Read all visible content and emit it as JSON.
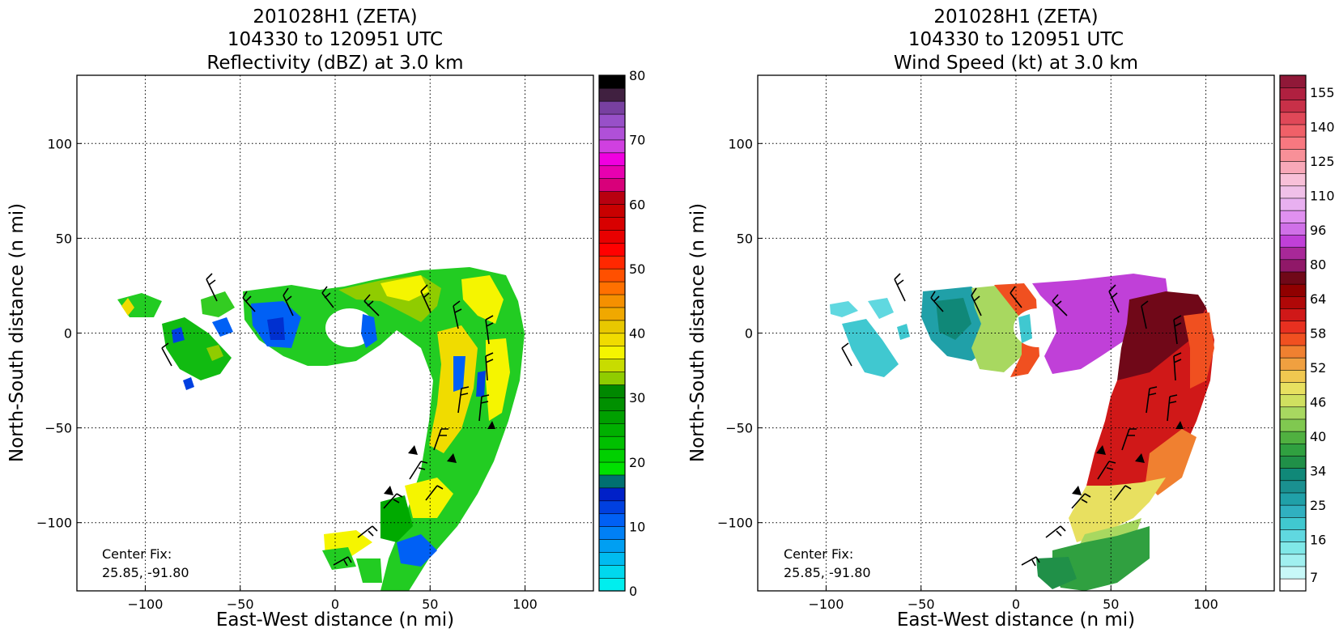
{
  "figure": {
    "panels": [
      {
        "id": "reflectivity",
        "title_lines": [
          "201028H1 (ZETA)",
          "104330 to 120951 UTC",
          "Reflectivity (dBZ) at 3.0 km"
        ],
        "center_fix_label": "Center Fix:",
        "center_fix_value": "25.85, -91.80"
      },
      {
        "id": "wind",
        "title_lines": [
          "201028H1 (ZETA)",
          "104330 to 120951 UTC",
          "Wind Speed (kt) at 3.0 km"
        ],
        "center_fix_label": "Center Fix:",
        "center_fix_value": "25.85, -91.80"
      }
    ]
  },
  "chart_data": [
    {
      "type": "heatmap",
      "title": "201028H1 (ZETA) 104330 to 120951 UTC Reflectivity (dBZ) at 3.0 km",
      "xlabel": "East-West distance (n mi)",
      "ylabel": "North-South distance (n mi)",
      "xlim": [
        -136,
        136
      ],
      "ylim": [
        -136,
        136
      ],
      "xticks": [
        -100,
        -50,
        0,
        50,
        100
      ],
      "yticks": [
        -100,
        -50,
        0,
        50,
        100
      ],
      "xtick_labels": [
        "−100",
        "−50",
        "0",
        "50",
        "100"
      ],
      "ytick_labels": [
        "−100",
        "−50",
        "0",
        "50",
        "100"
      ],
      "grid": true,
      "colorbar": {
        "min": 0,
        "max": 80,
        "tick_values": [
          0,
          10,
          20,
          30,
          40,
          50,
          60,
          70,
          80
        ],
        "tick_labels": [
          "0",
          "10",
          "20",
          "30",
          "40",
          "50",
          "60",
          "70",
          "80"
        ],
        "colors": [
          "#00eeee",
          "#00d8ee",
          "#00bbf0",
          "#009ff2",
          "#0080f5",
          "#0060f5",
          "#0040e0",
          "#0020c8",
          "#007070",
          "#00e000",
          "#00d000",
          "#00c000",
          "#00b000",
          "#00a000",
          "#009000",
          "#008800",
          "#90cc00",
          "#c8dc00",
          "#f5f500",
          "#f0dc00",
          "#e8c800",
          "#f0a800",
          "#f59000",
          "#ff7000",
          "#ff5000",
          "#ff2800",
          "#ff0000",
          "#e80000",
          "#d80000",
          "#c80000",
          "#b80010",
          "#d8007a",
          "#e800b0",
          "#f000e0",
          "#d040e0",
          "#b050d8",
          "#9850c8",
          "#7840a0",
          "#402040",
          "#000000"
        ]
      }
    },
    {
      "type": "heatmap",
      "title": "201028H1 (ZETA) 104330 to 120951 UTC Wind Speed (kt) at 3.0 km",
      "xlabel": "East-West distance (n mi)",
      "ylabel": "North-South distance (n mi)",
      "xlim": [
        -136,
        136
      ],
      "ylim": [
        -136,
        136
      ],
      "xticks": [
        -100,
        -50,
        0,
        50,
        100
      ],
      "yticks": [
        -100,
        -50,
        0,
        50,
        100
      ],
      "xtick_labels": [
        "−100",
        "−50",
        "0",
        "50",
        "100"
      ],
      "ytick_labels": [
        "−100",
        "−50",
        "0",
        "50",
        "100"
      ],
      "grid": true,
      "colorbar": {
        "tick_labels": [
          "7",
          "16",
          "25",
          "34",
          "40",
          "46",
          "52",
          "58",
          "64",
          "80",
          "96",
          "110",
          "125",
          "140",
          "155"
        ],
        "colors": [
          "#ffffff",
          "#c8f8f8",
          "#a0f0f0",
          "#80e8e8",
          "#60d8e0",
          "#40c8d0",
          "#30b0c0",
          "#20a0a8",
          "#1a9090",
          "#108878",
          "#209048",
          "#30a040",
          "#50b040",
          "#80c850",
          "#a8d860",
          "#d0e060",
          "#e8e060",
          "#f0c850",
          "#f0a040",
          "#f08030",
          "#f05020",
          "#e83020",
          "#d01818",
          "#b00808",
          "#900000",
          "#700818",
          "#901868",
          "#a82898",
          "#c040d8",
          "#d070e8",
          "#e090f0",
          "#e8b0f0",
          "#f0c0e8",
          "#f8c0d8",
          "#f8a8b8",
          "#f89098",
          "#f87880",
          "#f06068",
          "#e04858",
          "#c83048",
          "#b02040",
          "#901838"
        ]
      }
    }
  ]
}
